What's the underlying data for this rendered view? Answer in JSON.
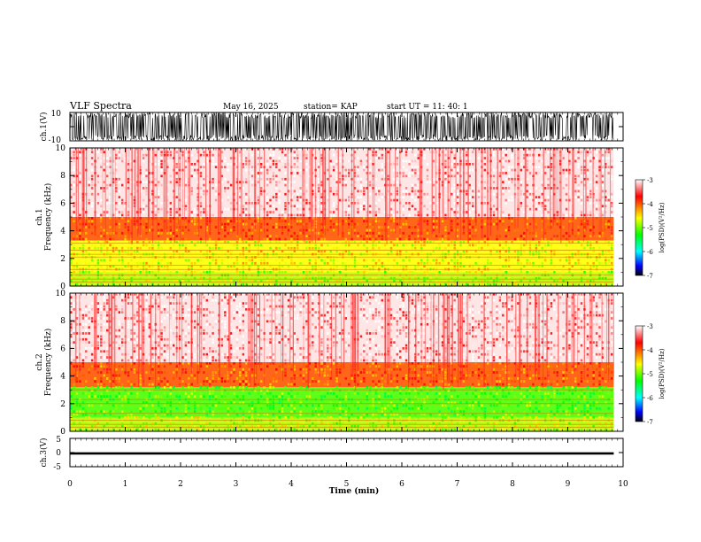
{
  "header": {
    "title": "VLF Spectra",
    "date": "May 16, 2025",
    "station": "station= KAP",
    "start_ut": "start  UT  =   11: 40: 1"
  },
  "chart_data": [
    {
      "type": "line",
      "name": "ch1-waveform",
      "ylabel": "ch.1(V)",
      "ylim": [
        -10,
        10
      ],
      "y_ticks": [
        "10",
        "-10"
      ],
      "description_values": "dense noise, amplitude approximately ±10 V, saturating"
    },
    {
      "type": "heatmap",
      "name": "ch1-spectrogram",
      "ylabel": "ch.1  Frequency  (kHz)",
      "ylabel_top": "ch.1",
      "ylabel_bottom": "Frequency  (kHz)",
      "ylim": [
        0,
        10
      ],
      "y_ticks": [
        "0",
        "2",
        "4",
        "6",
        "8",
        "10"
      ],
      "colorbar": {
        "label": "log(PSD)(V²/Hz)",
        "range": [
          -7,
          -3
        ],
        "ticks": [
          "-3",
          "-4",
          "-5",
          "-6",
          "-7"
        ]
      },
      "bands": [
        {
          "freq_khz": [
            0,
            1
          ],
          "log_psd": -4.8
        },
        {
          "freq_khz": [
            1,
            3.3
          ],
          "log_psd": -4.6
        },
        {
          "freq_khz": [
            3.3,
            5
          ],
          "log_psd": -4.0
        },
        {
          "freq_khz": [
            5,
            10
          ],
          "log_psd": -3.2
        }
      ],
      "lines_khz": [
        0.3,
        0.5,
        0.8,
        1.2,
        1.5,
        2.1,
        2.3,
        2.6,
        3.1
      ]
    },
    {
      "type": "heatmap",
      "name": "ch2-spectrogram",
      "ylabel": "ch.2  Frequency  (kHz)",
      "ylabel_top": "ch.2",
      "ylabel_bottom": "Frequency  (kHz)",
      "ylim": [
        0,
        10
      ],
      "y_ticks": [
        "0",
        "2",
        "4",
        "6",
        "8",
        "10"
      ],
      "colorbar": {
        "label": "log(PSD)(V²/Hz)",
        "range": [
          -7,
          -3
        ],
        "ticks": [
          "-3",
          "-4",
          "-5",
          "-6",
          "-7"
        ]
      },
      "bands": [
        {
          "freq_khz": [
            0,
            1
          ],
          "log_psd": -4.8
        },
        {
          "freq_khz": [
            1,
            3.2
          ],
          "log_psd": -5.1
        },
        {
          "freq_khz": [
            3.2,
            5
          ],
          "log_psd": -4.0
        },
        {
          "freq_khz": [
            5,
            10
          ],
          "log_psd": -3.2
        }
      ],
      "lines_khz": [
        0.3,
        0.5,
        0.8,
        1.3,
        2.0,
        2.3,
        3.0,
        4.6
      ]
    },
    {
      "type": "line",
      "name": "ch3-waveform",
      "ylabel": "ch.3(V)",
      "ylim": [
        -5,
        5
      ],
      "y_ticks": [
        "5",
        "0",
        "-5"
      ],
      "level_v": -0.3,
      "band_v": [
        -0.7,
        0.1
      ]
    }
  ],
  "x_axis": {
    "label": "Time  (min)",
    "xlim": [
      0,
      10
    ],
    "data_end_min": 9.83,
    "ticks": [
      "0",
      "1",
      "2",
      "3",
      "4",
      "5",
      "6",
      "7",
      "8",
      "9",
      "10"
    ]
  },
  "colors": {
    "scale": [
      "#ffffff",
      "#ff0000",
      "#ffff00",
      "#00ff00",
      "#00ffff",
      "#0000ff",
      "#000000"
    ]
  }
}
